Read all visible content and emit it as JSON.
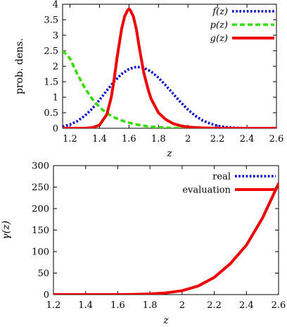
{
  "chart_data": [
    {
      "type": "line",
      "xlabel": "z",
      "ylabel": "prob. dens.",
      "xlim": [
        1.15,
        2.6
      ],
      "ylim": [
        0,
        4
      ],
      "xticks": [
        "1.2",
        "1.4",
        "1.6",
        "1.8",
        "2",
        "2.2",
        "2.4",
        "2.6"
      ],
      "yticks": [
        "0",
        "0.5",
        "1",
        "1.5",
        "2",
        "2.5",
        "3",
        "3.5",
        "4"
      ],
      "legend_position": "top-right",
      "grid": false,
      "series": [
        {
          "name": "f(z)",
          "color": "#0000cc",
          "style": "dotted",
          "x": [
            1.15,
            1.2,
            1.25,
            1.3,
            1.35,
            1.4,
            1.45,
            1.5,
            1.55,
            1.6,
            1.65,
            1.7,
            1.75,
            1.8,
            1.85,
            1.9,
            1.95,
            2.0,
            2.05,
            2.1,
            2.15,
            2.2,
            2.25,
            2.3,
            2.35,
            2.4,
            2.45,
            2.5,
            2.55,
            2.6
          ],
          "y": [
            0.05,
            0.12,
            0.23,
            0.4,
            0.63,
            0.91,
            1.22,
            1.51,
            1.75,
            1.91,
            1.98,
            1.95,
            1.83,
            1.63,
            1.38,
            1.11,
            0.84,
            0.6,
            0.4,
            0.25,
            0.15,
            0.08,
            0.04,
            0.02,
            0.01,
            0.005,
            0.0,
            0.0,
            0.0,
            0.0
          ]
        },
        {
          "name": "p(z)",
          "color": "#33dd00",
          "style": "dashed",
          "x": [
            1.15,
            1.2,
            1.25,
            1.3,
            1.35,
            1.4,
            1.45,
            1.5,
            1.55,
            1.6,
            1.65,
            1.7,
            1.75,
            1.8,
            1.85,
            1.9,
            1.95,
            2.0,
            2.05,
            2.1,
            2.15,
            2.2,
            2.25,
            2.3,
            2.35,
            2.4,
            2.45,
            2.5,
            2.55,
            2.6
          ],
          "y": [
            2.5,
            2.25,
            1.75,
            1.3,
            0.95,
            0.68,
            0.48,
            0.35,
            0.25,
            0.18,
            0.12,
            0.08,
            0.05,
            0.03,
            0.02,
            0.01,
            0.005,
            0.0,
            0.0,
            0.0,
            0.0,
            0.0,
            0.0,
            0.0,
            0.0,
            0.0,
            0.0,
            0.0,
            0.0,
            0.0
          ]
        },
        {
          "name": "g(z)",
          "color": "#ee0000",
          "style": "solid",
          "x": [
            1.15,
            1.3,
            1.35,
            1.4,
            1.45,
            1.48,
            1.5,
            1.52,
            1.55,
            1.57,
            1.59,
            1.6,
            1.61,
            1.63,
            1.65,
            1.67,
            1.7,
            1.73,
            1.75,
            1.8,
            1.85,
            1.9,
            1.95,
            2.0,
            2.1,
            2.2,
            2.3,
            2.6
          ],
          "y": [
            0.0,
            0.0,
            0.02,
            0.1,
            0.45,
            1.0,
            1.6,
            2.3,
            3.2,
            3.6,
            3.8,
            3.85,
            3.8,
            3.6,
            3.2,
            2.6,
            1.8,
            1.25,
            0.95,
            0.5,
            0.28,
            0.15,
            0.08,
            0.04,
            0.01,
            0.0,
            0.0,
            0.0
          ]
        }
      ]
    },
    {
      "type": "line",
      "xlabel": "z",
      "ylabel": "γ(z)",
      "xlim": [
        1.2,
        2.6
      ],
      "ylim": [
        0,
        300
      ],
      "xticks": [
        "1.2",
        "1.4",
        "1.6",
        "1.8",
        "2",
        "2.2",
        "2.4",
        "2.6"
      ],
      "yticks": [
        "0",
        "50",
        "100",
        "150",
        "200",
        "250",
        "300"
      ],
      "legend_position": "top-right",
      "grid": false,
      "series": [
        {
          "name": "real",
          "color": "#0000cc",
          "style": "dotted",
          "x": [
            1.2,
            1.4,
            1.6,
            1.7,
            1.8,
            1.9,
            2.0,
            2.1,
            2.2,
            2.3,
            2.4,
            2.5,
            2.6
          ],
          "y": [
            0,
            0,
            0,
            0.5,
            1.5,
            4,
            9,
            20,
            40,
            72,
            115,
            178,
            258
          ]
        },
        {
          "name": "evaluation",
          "color": "#ee0000",
          "style": "solid",
          "x": [
            1.2,
            1.4,
            1.6,
            1.7,
            1.8,
            1.9,
            2.0,
            2.1,
            2.2,
            2.3,
            2.4,
            2.5,
            2.6
          ],
          "y": [
            0,
            0,
            0,
            0.5,
            1.5,
            4,
            9,
            20,
            40,
            72,
            115,
            178,
            258
          ]
        }
      ]
    }
  ]
}
